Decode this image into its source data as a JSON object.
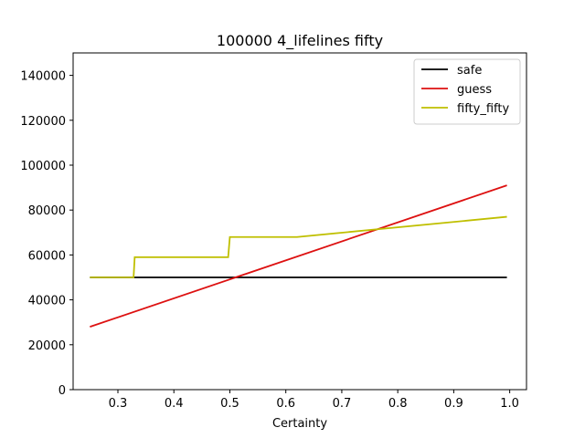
{
  "chart_data": {
    "type": "line",
    "title": "100000 4_lifelines fifty",
    "xlabel": "Certainty",
    "ylabel": "",
    "xlim": [
      0.22,
      1.03
    ],
    "ylim": [
      0,
      150000
    ],
    "xticks": [
      0.3,
      0.4,
      0.5,
      0.6,
      0.7,
      0.8,
      0.9,
      1.0
    ],
    "xtick_labels": [
      "0.3",
      "0.4",
      "0.5",
      "0.6",
      "0.7",
      "0.8",
      "0.9",
      "1.0"
    ],
    "yticks": [
      0,
      20000,
      40000,
      60000,
      80000,
      100000,
      120000,
      140000
    ],
    "ytick_labels": [
      "0",
      "20000",
      "40000",
      "60000",
      "80000",
      "100000",
      "120000",
      "140000"
    ],
    "grid": false,
    "legend_position": "top-right",
    "series": [
      {
        "name": "safe",
        "color": "#000000",
        "x": [
          0.25,
          0.995
        ],
        "y": [
          50000,
          50000
        ]
      },
      {
        "name": "guess",
        "color": "#dd1111",
        "x": [
          0.25,
          0.995
        ],
        "y": [
          28000,
          91000
        ]
      },
      {
        "name": "fifty_fifty",
        "color": "#bfbf00",
        "x": [
          0.25,
          0.328,
          0.33,
          0.497,
          0.5,
          0.62,
          0.995
        ],
        "y": [
          50000,
          50000,
          59000,
          59000,
          68000,
          68000,
          77000
        ]
      }
    ]
  }
}
